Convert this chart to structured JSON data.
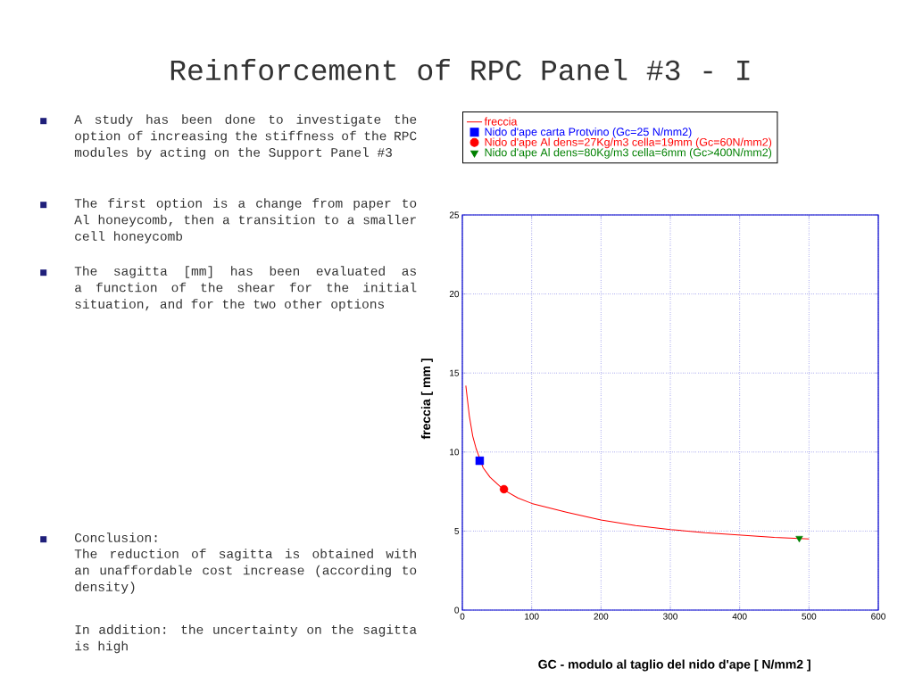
{
  "chart_data": {
    "type": "line",
    "title": "Reinforcement of RPC Panel #3 - I",
    "xlabel": "GC - modulo al taglio del nido d'ape [ N/mm2 ]",
    "ylabel": "freccia [ mm ]",
    "annotations": [
      "A study has been done to investigate the option of increasing the stiffness of the RPC modules by acting on the Support Panel #3",
      "The first option is a change from paper to Al honeycomb, then a transition to a smaller cell honeycomb",
      "The sagitta [mm] has been evaluated as a function of the shear for the initial situation, and for the two other options",
      "Conclusion:",
      "The reduction of sagitta is obtained with an unaffordable cost increase (according to density)",
      "In addition: the uncertainty on the sagitta is high"
    ],
    "series": [
      {
        "name": "freccia",
        "marker": "none",
        "color": "#ff0000",
        "x": [
          5,
          10,
          15,
          20,
          30,
          40,
          60,
          80,
          100,
          150,
          200,
          250,
          300,
          350,
          400,
          450,
          500
        ],
        "values": [
          14.2,
          12.3,
          11,
          10.2,
          9.0,
          8.4,
          7.6,
          7.1,
          6.75,
          6.2,
          5.7,
          5.35,
          5.1,
          4.9,
          4.75,
          4.6,
          4.5
        ]
      },
      {
        "name": "Nido d'ape carta Protvino (Gc=25 N/mm2)",
        "type": "scatter",
        "marker": "square",
        "color": "#0000ff",
        "x": [
          25
        ],
        "values": [
          9.45
        ]
      },
      {
        "name": "Nido d'ape Al dens=27Kg/m3 cella=19mm (Gc=60N/mm2)",
        "type": "scatter",
        "marker": "circle",
        "color": "#ff0000",
        "x": [
          60
        ],
        "values": [
          7.65
        ]
      },
      {
        "name": "Nido d'ape Al dens=80Kg/m3 cella=6mm (Gc>400N/mm2)",
        "type": "scatter",
        "marker": "triangle",
        "color": "#008000",
        "x": [
          486
        ],
        "values": [
          4.55
        ]
      }
    ],
    "xlim": [
      0,
      600
    ],
    "ylim": [
      0,
      25
    ],
    "xticks": [
      0,
      100,
      200,
      300,
      400,
      500,
      600
    ],
    "yticks": [
      0,
      5,
      10,
      15,
      20,
      25
    ],
    "grid": true,
    "legend": "top"
  }
}
